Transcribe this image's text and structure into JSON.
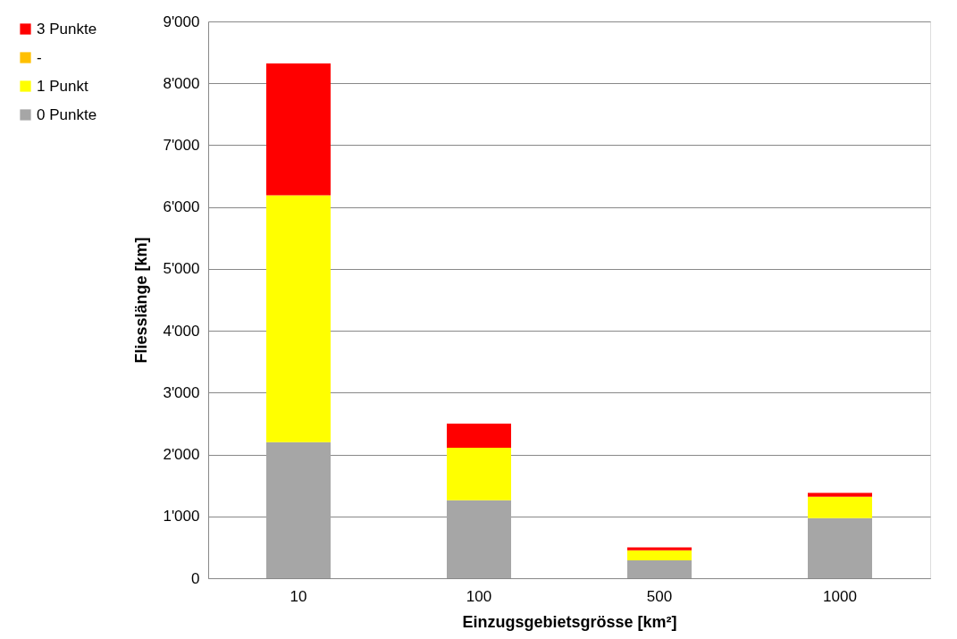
{
  "chart_data": {
    "type": "bar",
    "stacked": true,
    "xlabel": "Einzugsgebietsgrösse [km²]",
    "ylabel": "Fliesslänge [km]",
    "categories": [
      "10",
      "100",
      "500",
      "1000"
    ],
    "series": [
      {
        "name": "0 Punkte",
        "color": "#a6a6a6",
        "values": [
          2200,
          1260,
          290,
          970
        ]
      },
      {
        "name": "1 Punkt",
        "color": "#ffff00",
        "values": [
          3990,
          850,
          160,
          350
        ]
      },
      {
        "name": "-",
        "color": "#ffc000",
        "values": [
          0,
          0,
          0,
          0
        ]
      },
      {
        "name": "3 Punkte",
        "color": "#ff0000",
        "values": [
          2130,
          390,
          50,
          60
        ]
      }
    ],
    "ylim": [
      0,
      9000
    ],
    "yticks": [
      0,
      {
        "value": 1000,
        "label": "1'000"
      },
      {
        "value": 2000,
        "label": "2'000"
      },
      {
        "value": 3000,
        "label": "3'000"
      },
      {
        "value": 4000,
        "label": "4'000"
      },
      {
        "value": 5000,
        "label": "5'000"
      },
      {
        "value": 6000,
        "label": "6'000"
      },
      {
        "value": 7000,
        "label": "7'000"
      },
      {
        "value": 8000,
        "label": "8'000"
      },
      {
        "value": 9000,
        "label": "9'000"
      }
    ],
    "grid": "y",
    "legend": "left"
  }
}
